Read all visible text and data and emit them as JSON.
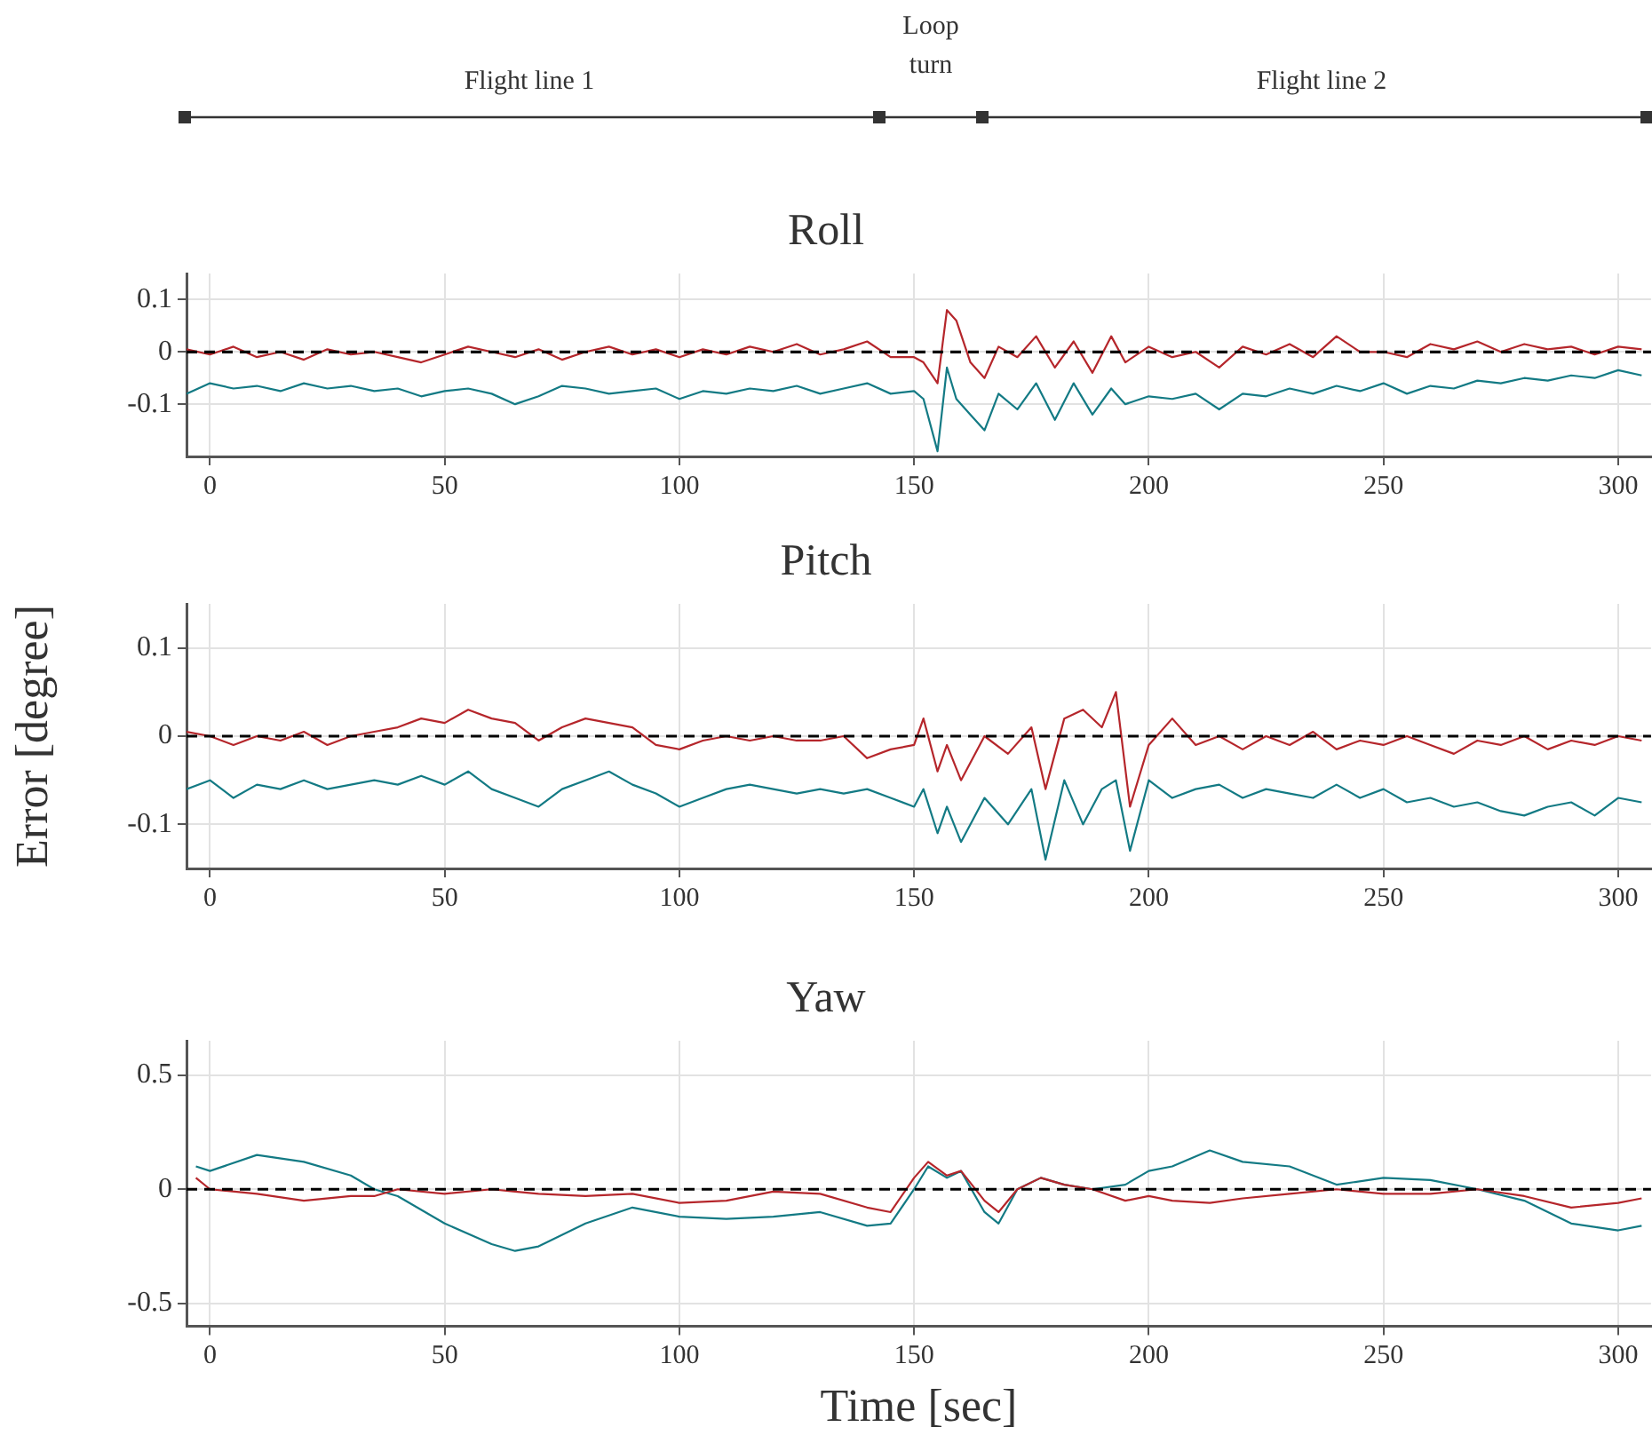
{
  "chart_data": [
    {
      "type": "other",
      "annotations": [
        "Flight line 1",
        "Loop turn",
        "Flight line 2"
      ]
    },
    {
      "type": "line",
      "title": "Roll",
      "xlim": [
        -5,
        307
      ],
      "xticks": [
        0,
        50,
        100,
        150,
        200,
        250,
        300
      ],
      "ylim": [
        -0.2,
        0.15
      ],
      "yticks": [
        -0.1,
        0,
        0.1
      ],
      "grid": true,
      "line_style": "solid",
      "marker": "none",
      "x": [
        -5,
        0,
        5,
        10,
        15,
        20,
        25,
        30,
        35,
        40,
        45,
        50,
        55,
        60,
        65,
        70,
        75,
        80,
        85,
        90,
        95,
        100,
        105,
        110,
        115,
        120,
        125,
        130,
        135,
        140,
        145,
        150,
        152,
        155,
        157,
        159,
        162,
        165,
        168,
        172,
        176,
        180,
        184,
        188,
        192,
        195,
        200,
        205,
        210,
        215,
        220,
        225,
        230,
        235,
        240,
        245,
        250,
        255,
        260,
        265,
        270,
        275,
        280,
        285,
        290,
        295,
        300,
        305
      ],
      "series": [
        {
          "color": "#b5262b",
          "values": [
            0.005,
            -0.005,
            0.01,
            -0.01,
            0.0,
            -0.015,
            0.005,
            -0.005,
            0.0,
            -0.01,
            -0.02,
            -0.005,
            0.01,
            0.0,
            -0.01,
            0.005,
            -0.015,
            0.0,
            0.01,
            -0.005,
            0.005,
            -0.01,
            0.005,
            -0.005,
            0.01,
            0.0,
            0.015,
            -0.005,
            0.005,
            0.02,
            -0.01,
            -0.01,
            -0.02,
            -0.06,
            0.08,
            0.06,
            -0.02,
            -0.05,
            0.01,
            -0.01,
            0.03,
            -0.03,
            0.02,
            -0.04,
            0.03,
            -0.02,
            0.01,
            -0.01,
            0.0,
            -0.03,
            0.01,
            -0.005,
            0.015,
            -0.01,
            0.03,
            0.0,
            0.0,
            -0.01,
            0.015,
            0.005,
            0.02,
            0.0,
            0.015,
            0.005,
            0.01,
            -0.005,
            0.01,
            0.005
          ]
        },
        {
          "color": "#137a84",
          "values": [
            -0.08,
            -0.06,
            -0.07,
            -0.065,
            -0.075,
            -0.06,
            -0.07,
            -0.065,
            -0.075,
            -0.07,
            -0.085,
            -0.075,
            -0.07,
            -0.08,
            -0.1,
            -0.085,
            -0.065,
            -0.07,
            -0.08,
            -0.075,
            -0.07,
            -0.09,
            -0.075,
            -0.08,
            -0.07,
            -0.075,
            -0.065,
            -0.08,
            -0.07,
            -0.06,
            -0.08,
            -0.075,
            -0.09,
            -0.19,
            -0.03,
            -0.09,
            -0.12,
            -0.15,
            -0.08,
            -0.11,
            -0.06,
            -0.13,
            -0.06,
            -0.12,
            -0.07,
            -0.1,
            -0.085,
            -0.09,
            -0.08,
            -0.11,
            -0.08,
            -0.085,
            -0.07,
            -0.08,
            -0.065,
            -0.075,
            -0.06,
            -0.08,
            -0.065,
            -0.07,
            -0.055,
            -0.06,
            -0.05,
            -0.055,
            -0.045,
            -0.05,
            -0.035,
            -0.045
          ]
        }
      ],
      "ref_lines": [
        {
          "axis": "y",
          "value": 0,
          "color": "#000000",
          "line_style": "dashed"
        }
      ]
    },
    {
      "type": "line",
      "title": "Pitch",
      "ylabel": "Error [degree]",
      "xlim": [
        -5,
        307
      ],
      "xticks": [
        0,
        50,
        100,
        150,
        200,
        250,
        300
      ],
      "ylim": [
        -0.15,
        0.15
      ],
      "yticks": [
        -0.1,
        0,
        0.1
      ],
      "grid": true,
      "line_style": "solid",
      "marker": "none",
      "x": [
        -5,
        0,
        5,
        10,
        15,
        20,
        25,
        30,
        35,
        40,
        45,
        50,
        55,
        60,
        65,
        70,
        75,
        80,
        85,
        90,
        95,
        100,
        105,
        110,
        115,
        120,
        125,
        130,
        135,
        140,
        145,
        150,
        152,
        155,
        157,
        160,
        165,
        170,
        175,
        178,
        182,
        186,
        190,
        193,
        196,
        200,
        205,
        210,
        215,
        220,
        225,
        230,
        235,
        240,
        245,
        250,
        255,
        260,
        265,
        270,
        275,
        280,
        285,
        290,
        295,
        300,
        305
      ],
      "series": [
        {
          "color": "#b5262b",
          "values": [
            0.005,
            0.0,
            -0.01,
            0.0,
            -0.005,
            0.005,
            -0.01,
            0.0,
            0.005,
            0.01,
            0.02,
            0.015,
            0.03,
            0.02,
            0.015,
            -0.005,
            0.01,
            0.02,
            0.015,
            0.01,
            -0.01,
            -0.015,
            -0.005,
            0.0,
            -0.005,
            0.0,
            -0.005,
            -0.005,
            0.0,
            -0.025,
            -0.015,
            -0.01,
            0.02,
            -0.04,
            -0.01,
            -0.05,
            0.0,
            -0.02,
            0.01,
            -0.06,
            0.02,
            0.03,
            0.01,
            0.05,
            -0.08,
            -0.01,
            0.02,
            -0.01,
            0.0,
            -0.015,
            0.0,
            -0.01,
            0.005,
            -0.015,
            -0.005,
            -0.01,
            0.0,
            -0.01,
            -0.02,
            -0.005,
            -0.01,
            0.0,
            -0.015,
            -0.005,
            -0.01,
            0.0,
            -0.005
          ]
        },
        {
          "color": "#137a84",
          "values": [
            -0.06,
            -0.05,
            -0.07,
            -0.055,
            -0.06,
            -0.05,
            -0.06,
            -0.055,
            -0.05,
            -0.055,
            -0.045,
            -0.055,
            -0.04,
            -0.06,
            -0.07,
            -0.08,
            -0.06,
            -0.05,
            -0.04,
            -0.055,
            -0.065,
            -0.08,
            -0.07,
            -0.06,
            -0.055,
            -0.06,
            -0.065,
            -0.06,
            -0.065,
            -0.06,
            -0.07,
            -0.08,
            -0.06,
            -0.11,
            -0.08,
            -0.12,
            -0.07,
            -0.1,
            -0.06,
            -0.14,
            -0.05,
            -0.1,
            -0.06,
            -0.05,
            -0.13,
            -0.05,
            -0.07,
            -0.06,
            -0.055,
            -0.07,
            -0.06,
            -0.065,
            -0.07,
            -0.055,
            -0.07,
            -0.06,
            -0.075,
            -0.07,
            -0.08,
            -0.075,
            -0.085,
            -0.09,
            -0.08,
            -0.075,
            -0.09,
            -0.07,
            -0.075
          ]
        }
      ],
      "ref_lines": [
        {
          "axis": "y",
          "value": 0,
          "color": "#000000",
          "line_style": "dashed"
        }
      ]
    },
    {
      "type": "line",
      "title": "Yaw",
      "xlabel": "Time [sec]",
      "xlim": [
        -5,
        307
      ],
      "xticks": [
        0,
        50,
        100,
        150,
        200,
        250,
        300
      ],
      "ylim": [
        -0.6,
        0.65
      ],
      "yticks": [
        -0.5,
        0,
        0.5
      ],
      "grid": true,
      "line_style": "solid",
      "marker": "none",
      "x": [
        -3,
        0,
        10,
        20,
        30,
        35,
        40,
        50,
        60,
        65,
        70,
        80,
        90,
        100,
        110,
        120,
        130,
        140,
        145,
        150,
        153,
        157,
        160,
        165,
        168,
        172,
        177,
        182,
        188,
        195,
        200,
        205,
        213,
        220,
        230,
        240,
        250,
        260,
        270,
        280,
        290,
        300,
        305
      ],
      "series": [
        {
          "color": "#b5262b",
          "values": [
            0.05,
            0.0,
            -0.02,
            -0.05,
            -0.03,
            -0.03,
            0.0,
            -0.02,
            0.0,
            -0.01,
            -0.02,
            -0.03,
            -0.02,
            -0.06,
            -0.05,
            -0.01,
            -0.02,
            -0.08,
            -0.1,
            0.05,
            0.12,
            0.06,
            0.08,
            -0.05,
            -0.1,
            0.0,
            0.05,
            0.02,
            0.0,
            -0.05,
            -0.03,
            -0.05,
            -0.06,
            -0.04,
            -0.02,
            0.0,
            -0.02,
            -0.02,
            0.0,
            -0.03,
            -0.08,
            -0.06,
            -0.04
          ]
        },
        {
          "color": "#137a84",
          "values": [
            0.1,
            0.08,
            0.15,
            0.12,
            0.06,
            0.0,
            -0.03,
            -0.15,
            -0.24,
            -0.27,
            -0.25,
            -0.15,
            -0.08,
            -0.12,
            -0.13,
            -0.12,
            -0.1,
            -0.16,
            -0.15,
            0.0,
            0.1,
            0.05,
            0.08,
            -0.1,
            -0.15,
            0.0,
            0.05,
            0.02,
            0.0,
            0.02,
            0.08,
            0.1,
            0.17,
            0.12,
            0.1,
            0.02,
            0.05,
            0.04,
            0.0,
            -0.05,
            -0.15,
            -0.18,
            -0.16
          ]
        }
      ],
      "ref_lines": [
        {
          "axis": "y",
          "value": 0,
          "color": "#000000",
          "line_style": "dashed"
        }
      ]
    }
  ]
}
